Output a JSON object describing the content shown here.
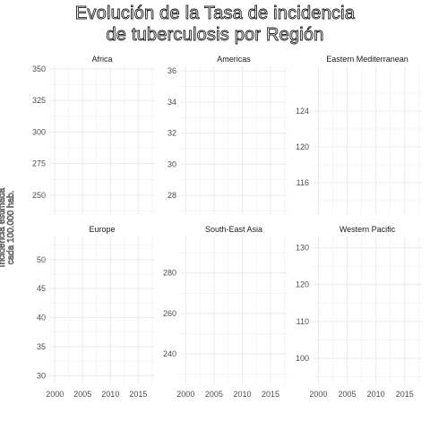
{
  "title": {
    "line1": "Evolución de la Tasa de incidencia",
    "line2": "de tuberculosis por Región"
  },
  "ylabel": {
    "line1": "Incidencia estimada",
    "line2": "cada 100.000 hab."
  },
  "chart_data": {
    "type": "line",
    "facet": "region",
    "grid": true,
    "xlim": [
      1999,
      2018
    ],
    "xticks": [
      2000,
      2005,
      2010,
      2015
    ],
    "panels": [
      {
        "name": "Africa",
        "ylim": [
          235,
          352
        ],
        "yticks": [
          250,
          275,
          300,
          325,
          350
        ],
        "x": [],
        "y": []
      },
      {
        "name": "Americas",
        "ylim": [
          26.8,
          36.3
        ],
        "yticks": [
          28,
          30,
          32,
          34,
          36
        ],
        "x": [],
        "y": []
      },
      {
        "name": "Eastern Mediterranean",
        "ylim": [
          112.5,
          129
        ],
        "yticks": [
          116,
          120,
          124
        ],
        "x": [],
        "y": []
      },
      {
        "name": "Europe",
        "ylim": [
          28.5,
          54
        ],
        "yticks": [
          30,
          35,
          40,
          45,
          50
        ],
        "x": [],
        "y": []
      },
      {
        "name": "South-East Asia",
        "ylim": [
          225,
          298
        ],
        "yticks": [
          240,
          260,
          280
        ],
        "x": [],
        "y": []
      },
      {
        "name": "Western Pacific",
        "ylim": [
          93,
          133
        ],
        "yticks": [
          100,
          110,
          120,
          130
        ],
        "x": [],
        "y": []
      }
    ]
  },
  "colors": {
    "background": "#ffffff",
    "grid": "#ebebeb",
    "tick_text": "#4d4d4d"
  }
}
